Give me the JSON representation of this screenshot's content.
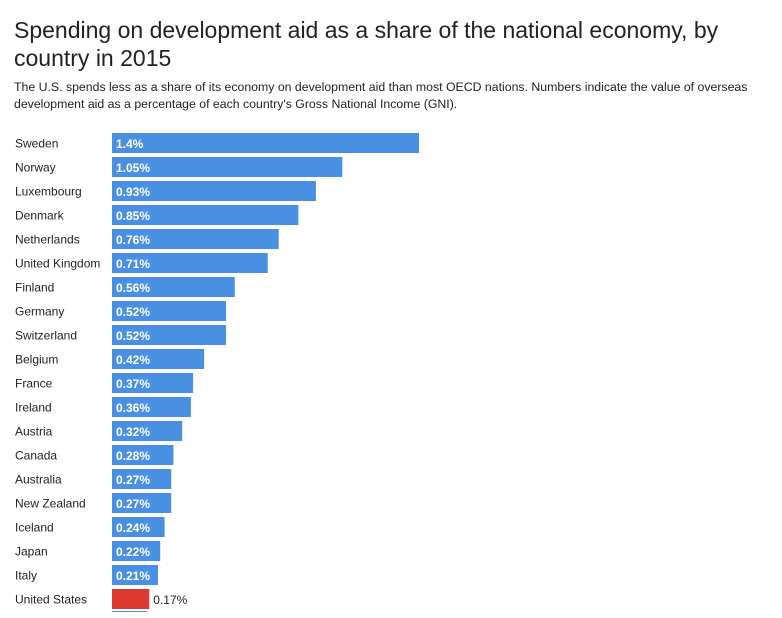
{
  "chart_data": {
    "type": "bar",
    "orientation": "horizontal",
    "title": "Spending on development aid as a share of the national economy, by country in 2015",
    "subtitle": "The U.S. spends less as a share of its economy on development aid than most OECD nations. Numbers indicate the value of overseas development aid as a percentage of each country's Gross National Income (GNI).",
    "categories": [
      "Sweden",
      "Norway",
      "Luxembourg",
      "Denmark",
      "Netherlands",
      "United Kingdom",
      "Finland",
      "Germany",
      "Switzerland",
      "Belgium",
      "France",
      "Ireland",
      "Austria",
      "Canada",
      "Australia",
      "New Zealand",
      "Iceland",
      "Japan",
      "Italy",
      "United States"
    ],
    "values": [
      1.4,
      1.05,
      0.93,
      0.85,
      0.76,
      0.71,
      0.56,
      0.52,
      0.52,
      0.42,
      0.37,
      0.36,
      0.32,
      0.28,
      0.27,
      0.27,
      0.24,
      0.22,
      0.21,
      0.17
    ],
    "value_labels": [
      "1.4%",
      "1.05%",
      "0.93%",
      "0.85%",
      "0.76%",
      "0.71%",
      "0.56%",
      "0.52%",
      "0.52%",
      "0.42%",
      "0.37%",
      "0.36%",
      "0.32%",
      "0.28%",
      "0.27%",
      "0.27%",
      "0.24%",
      "0.22%",
      "0.21%",
      "0.17%"
    ],
    "highlight": "United States",
    "bar_color": "#4a90e2",
    "highlight_color": "#dc3a2e",
    "xlim": [
      0,
      1.4
    ],
    "xlabel": "",
    "ylabel": "",
    "grid": false,
    "legend": "none"
  }
}
